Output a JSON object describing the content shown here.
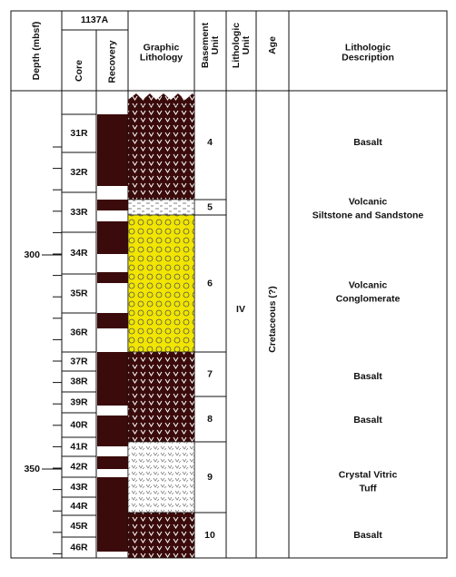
{
  "header": {
    "site": "1137A",
    "columns": [
      [
        "Depth (mbsf)"
      ],
      [
        "Core"
      ],
      [
        "Recovery"
      ],
      [
        "Graphic",
        "Lithology"
      ],
      [
        "Basement",
        "Unit"
      ],
      [
        "Lithologic",
        "Unit"
      ],
      [
        "Age"
      ],
      [
        "Lithologic",
        "Description"
      ]
    ]
  },
  "depth_labels": [
    "300",
    "350"
  ],
  "cores": [
    "31R",
    "32R",
    "33R",
    "34R",
    "35R",
    "36R",
    "37R",
    "38R",
    "39R",
    "40R",
    "41R",
    "42R",
    "43R",
    "44R",
    "45R",
    "46R"
  ],
  "basement_units": [
    "4",
    "5",
    "6",
    "7",
    "8",
    "9",
    "10"
  ],
  "lithologic_unit": "IV",
  "age": "Cretaceous (?)",
  "descriptions": [
    [
      "Basalt"
    ],
    [
      "Volcanic",
      "Siltstone and Sandstone"
    ],
    [
      "Volcanic",
      "Conglomerate"
    ],
    [
      "Basalt"
    ],
    [
      "Basalt"
    ],
    [
      "Crystal Vitric",
      "Tuff"
    ],
    [
      "Basalt"
    ]
  ]
}
